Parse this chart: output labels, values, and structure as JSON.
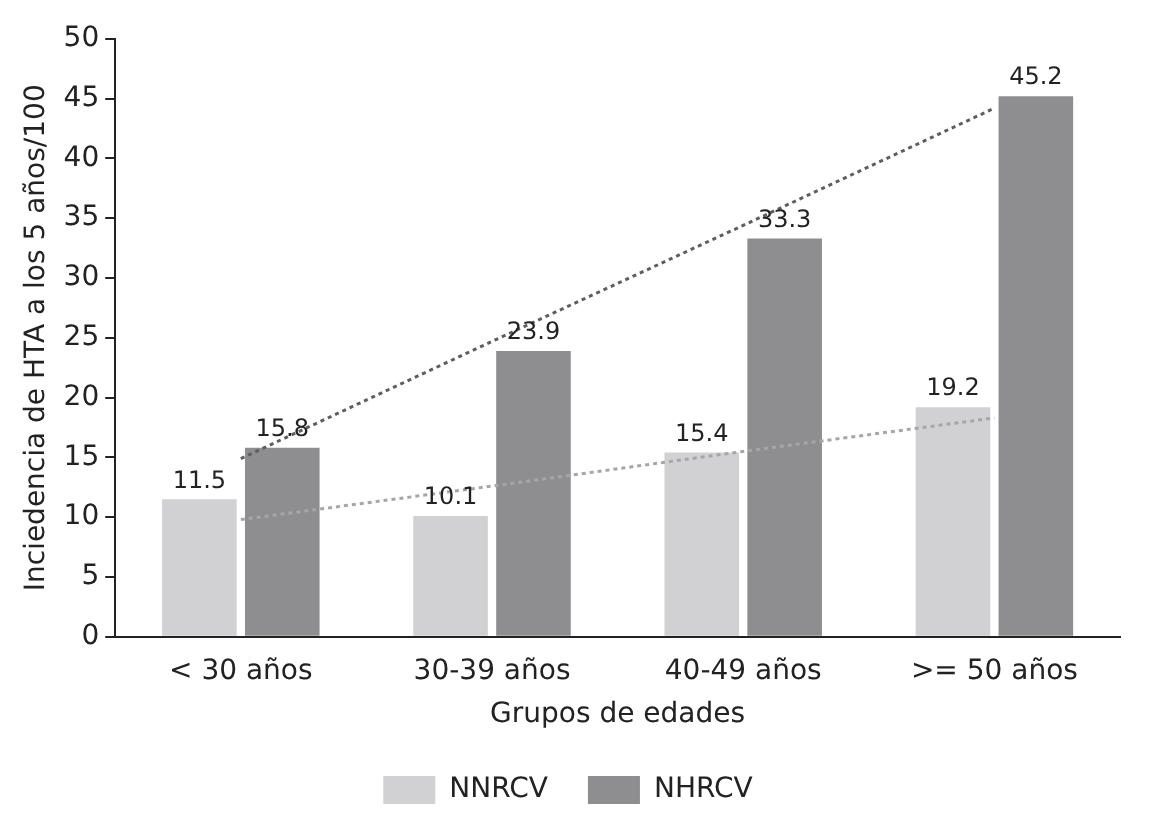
{
  "chart_data": {
    "type": "bar",
    "xlabel": "Grupos de edades",
    "ylabel": "Inciedencia de HTA a los 5 años/100",
    "categories": [
      "< 30 años",
      "30-39 años",
      "40-49 años",
      ">= 50 años"
    ],
    "series": [
      {
        "name": "NNRCV",
        "color": "#d1d1d3",
        "values": [
          11.5,
          10.1,
          15.4,
          19.2
        ],
        "value_labels": [
          "11.5",
          "10.1",
          "15.4",
          "19.2"
        ]
      },
      {
        "name": "NHRCV",
        "color": "#8e8e90",
        "values": [
          15.8,
          23.9,
          33.3,
          45.2
        ],
        "value_labels": [
          "15.8",
          "23.9",
          "33.3",
          "45.2"
        ]
      },
      {
        "type": "line",
        "color": "#a6a6a8",
        "line_style": "dotted",
        "marker": "none",
        "x": [
          "< 30 años",
          "30-39 años",
          "40-49 años",
          ">= 50 años"
        ],
        "values": [
          9.8,
          12.6,
          15.5,
          18.3
        ]
      },
      {
        "type": "line",
        "color": "#5e5e60",
        "line_style": "dotted",
        "marker": "none",
        "x": [
          "< 30 años",
          "30-39 años",
          "40-49 años",
          ">= 50 años"
        ],
        "values": [
          14.9,
          24.7,
          34.4,
          44.2
        ]
      }
    ],
    "ylim": [
      0,
      50
    ],
    "yticks": [
      0,
      5,
      10,
      15,
      20,
      25,
      30,
      35,
      40,
      45,
      50
    ],
    "grid": false,
    "legend": "bottom"
  }
}
